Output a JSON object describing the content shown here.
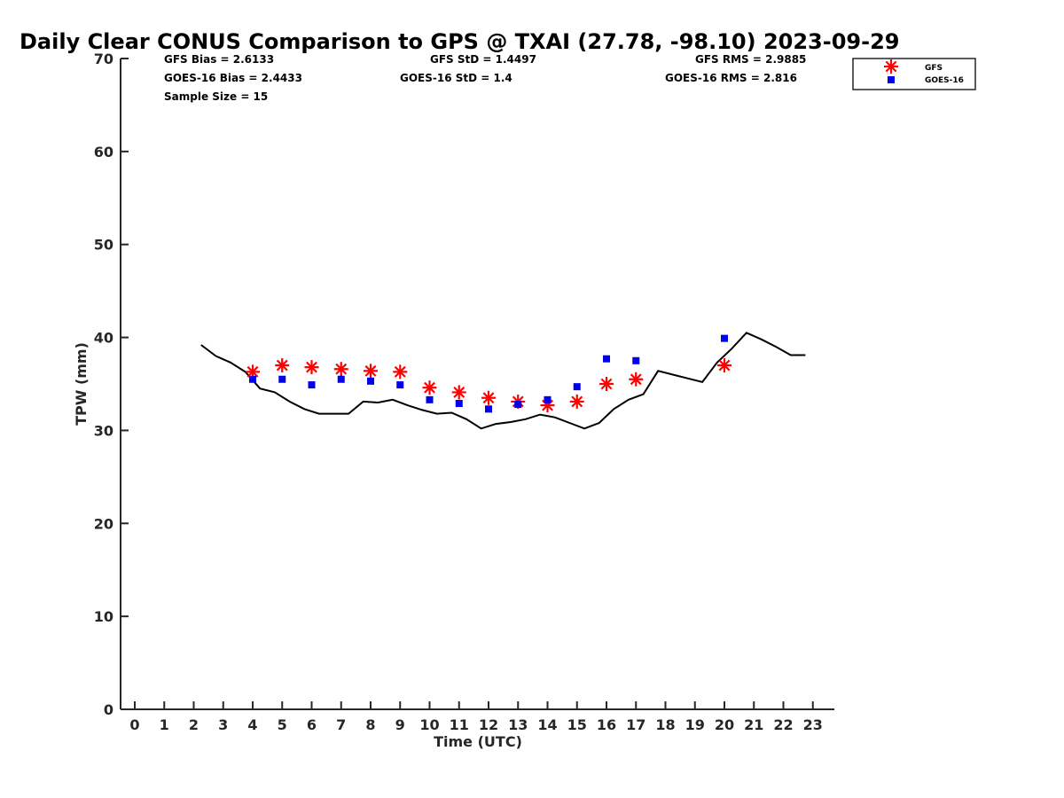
{
  "colors": {
    "gfs": "#ff0000",
    "goes": "#0000ee",
    "gps": "#000000",
    "axis": "#262626"
  },
  "stats": {
    "gfs_bias": "GFS Bias = 2.6133",
    "gfs_std": "GFS StD = 1.4497",
    "gfs_rms": "GFS RMS = 2.9885",
    "goes_bias": "GOES-16 Bias = 2.4433",
    "goes_std": "GOES-16 StD = 1.4",
    "goes_rms": "GOES-16 RMS = 2.816",
    "sample_size": "Sample Size = 15"
  },
  "chart_data": {
    "type": "scatter",
    "title": "Daily Clear CONUS Comparison to GPS @ TXAI (27.78, -98.10) 2023-09-29",
    "xlabel": "Time (UTC)",
    "ylabel": "TPW (mm)",
    "xlim": [
      -0.5,
      23.7
    ],
    "ylim": [
      0,
      70
    ],
    "xticks": [
      "0",
      "1",
      "2",
      "3",
      "4",
      "5",
      "6",
      "7",
      "8",
      "9",
      "10",
      "11",
      "12",
      "13",
      "14",
      "15",
      "16",
      "17",
      "18",
      "19",
      "20",
      "21",
      "22",
      "23"
    ],
    "yticks": [
      "0",
      "10",
      "20",
      "30",
      "40",
      "50",
      "60",
      "70"
    ],
    "grid": false,
    "legend": {
      "placement": "top-right",
      "entries": [
        "GFS",
        "GOES-16"
      ]
    },
    "series": [
      {
        "name": "GPS",
        "kind": "line",
        "x": [
          2.25,
          2.75,
          3.25,
          3.75,
          4.0,
          4.25,
          4.75,
          5.25,
          5.75,
          6.25,
          6.75,
          7.25,
          7.75,
          8.25,
          8.75,
          9.25,
          9.75,
          10.25,
          10.75,
          11.25,
          11.75,
          12.25,
          12.75,
          13.25,
          13.75,
          14.25,
          14.75,
          15.25,
          15.75,
          16.25,
          16.75,
          17.25,
          17.75,
          18.25,
          18.75,
          19.25,
          19.75,
          20.25,
          20.75,
          21.25,
          21.75,
          22.25,
          22.75
        ],
        "y": [
          39.2,
          38.0,
          37.3,
          36.3,
          35.4,
          34.5,
          34.1,
          33.1,
          32.3,
          31.8,
          31.8,
          31.8,
          33.1,
          33.0,
          33.3,
          32.7,
          32.2,
          31.8,
          31.9,
          31.2,
          30.2,
          30.7,
          30.9,
          31.2,
          31.7,
          31.4,
          30.8,
          30.2,
          30.8,
          32.3,
          33.3,
          33.9,
          36.4,
          36.0,
          35.6,
          35.2,
          37.3,
          38.8,
          40.5,
          39.8,
          39.0,
          38.1,
          38.1
        ]
      },
      {
        "name": "GFS",
        "kind": "marker-star",
        "x": [
          4,
          5,
          6,
          7,
          8,
          9,
          10,
          11,
          12,
          13,
          14,
          15,
          16,
          17,
          20
        ],
        "y": [
          36.3,
          37.0,
          36.8,
          36.6,
          36.4,
          36.3,
          34.6,
          34.1,
          33.5,
          33.1,
          32.7,
          33.1,
          35.0,
          35.5,
          37.0
        ]
      },
      {
        "name": "GOES-16",
        "kind": "marker-square",
        "x": [
          4,
          5,
          6,
          7,
          8,
          9,
          10,
          11,
          12,
          13,
          14,
          15,
          16,
          17,
          20
        ],
        "y": [
          35.5,
          35.5,
          34.9,
          35.5,
          35.3,
          34.9,
          33.3,
          32.9,
          32.3,
          32.8,
          33.3,
          34.7,
          37.7,
          37.5,
          39.9
        ]
      }
    ]
  }
}
